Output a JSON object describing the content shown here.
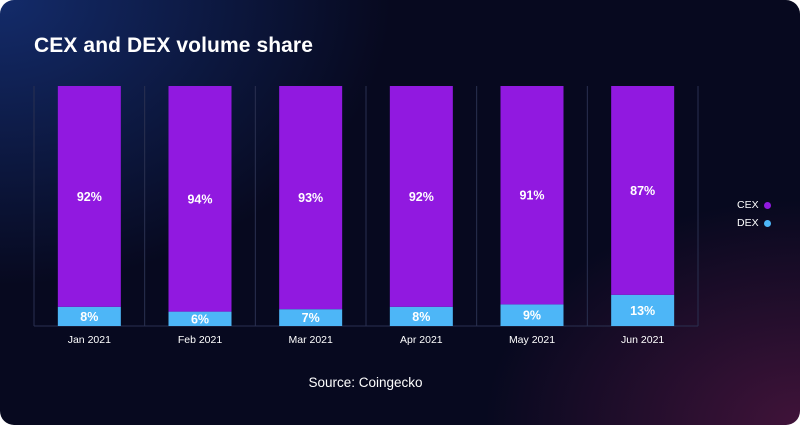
{
  "colors": {
    "cex": "#9119e0",
    "dex": "#4db6f7",
    "grid": "#2a3050"
  },
  "chart_data": {
    "type": "bar",
    "stacked": true,
    "percent": true,
    "title": "CEX and DEX volume share",
    "categories": [
      "Jan 2021",
      "Feb 2021",
      "Mar 2021",
      "Apr 2021",
      "May 2021",
      "Jun 2021"
    ],
    "series": [
      {
        "name": "DEX",
        "values": [
          8,
          6,
          7,
          8,
          9,
          13
        ],
        "labels": [
          "8%",
          "6%",
          "7%",
          "8%",
          "9%",
          "13%"
        ]
      },
      {
        "name": "CEX",
        "values": [
          92,
          94,
          93,
          92,
          91,
          87
        ],
        "labels": [
          "92%",
          "94%",
          "93%",
          "92%",
          "91%",
          "87%"
        ]
      }
    ],
    "xlabel": "",
    "ylabel": "",
    "ylim": [
      0,
      100
    ],
    "legend": {
      "position": "right",
      "entries": [
        "CEX",
        "DEX"
      ]
    },
    "source": "Source: Coingecko"
  }
}
